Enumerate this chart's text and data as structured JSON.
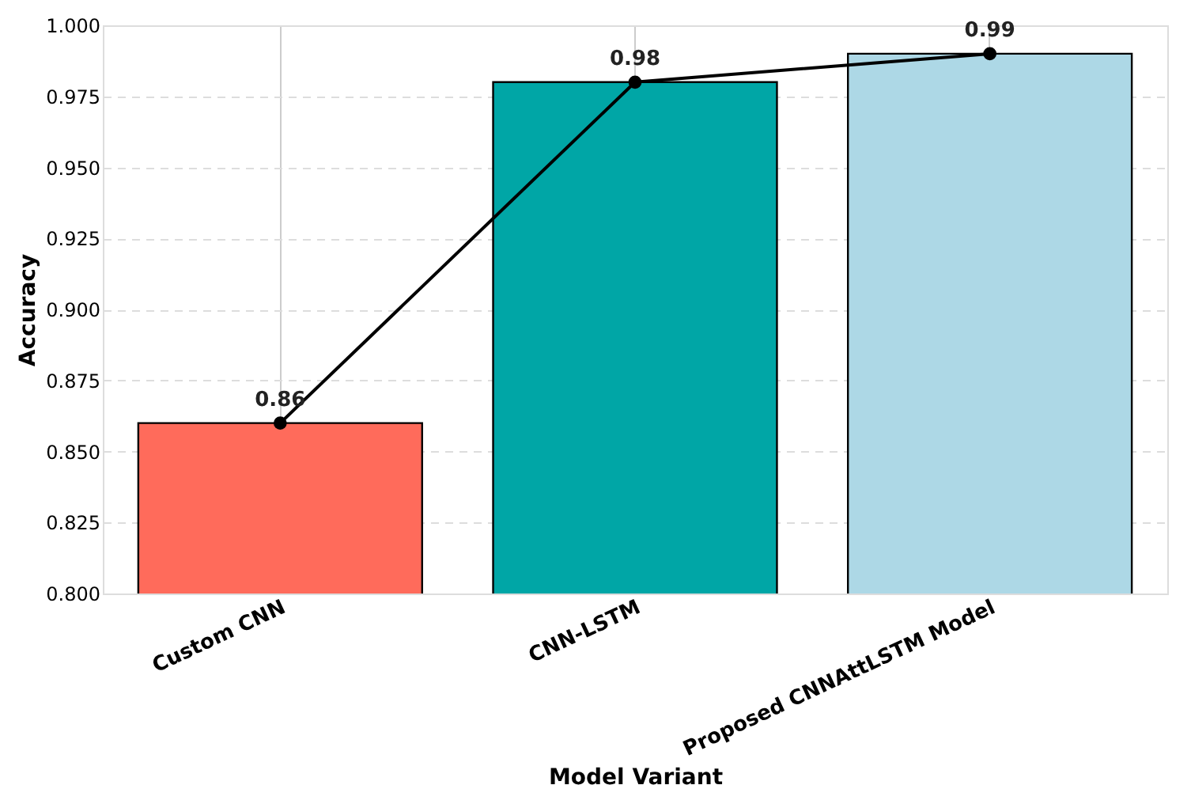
{
  "chart_data": {
    "type": "bar",
    "xlabel": "Model Variant",
    "ylabel": "Accuracy",
    "categories": [
      "Custom CNN",
      "CNN-LSTM",
      "Proposed CNNAttLSTM Model"
    ],
    "series": [
      {
        "colors": [
          "#ff6b5b",
          "#00a6a6",
          "#add8e6"
        ],
        "values": [
          0.86,
          0.98,
          0.99
        ]
      },
      {
        "type": "line",
        "color": "#000000",
        "values": [
          0.86,
          0.98,
          0.99
        ],
        "marker": "circle",
        "line_style": "solid",
        "value_labels": [
          "0.86",
          "0.98",
          "0.99"
        ]
      }
    ],
    "ylim": [
      0.8,
      1.0
    ],
    "yticks": [
      {
        "value": 0.8,
        "label": "0.800"
      },
      {
        "value": 0.825,
        "label": "0.825"
      },
      {
        "value": 0.85,
        "label": "0.850"
      },
      {
        "value": 0.875,
        "label": "0.875"
      },
      {
        "value": 0.9,
        "label": "0.900"
      },
      {
        "value": 0.925,
        "label": "0.925"
      },
      {
        "value": 0.95,
        "label": "0.950"
      },
      {
        "value": 0.975,
        "label": "0.975"
      },
      {
        "value": 1.0,
        "label": "1.000"
      }
    ],
    "grid": true
  }
}
